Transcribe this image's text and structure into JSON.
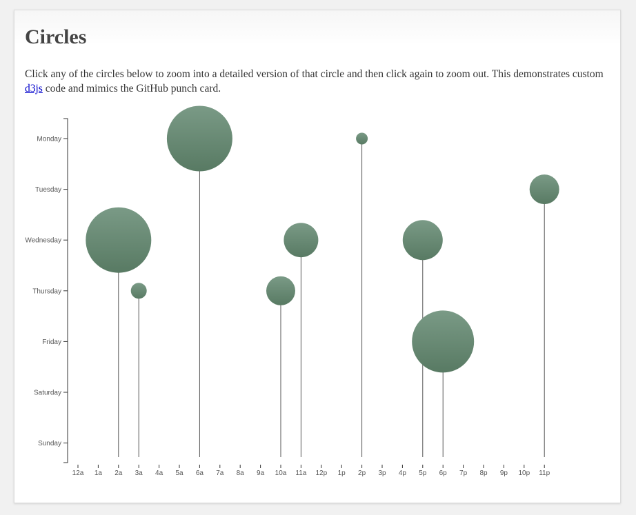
{
  "page": {
    "title": "Circles",
    "description_before": "Click any of the circles below to zoom into a detailed version of that circle and then click again to zoom out. This demonstrates custom ",
    "link_text": "d3js",
    "description_after": " code and mimics the GitHub punch card."
  },
  "colors": {
    "circle_top": "#7a9a86",
    "circle_bottom": "#587a63",
    "stem": "#555555",
    "axis": "#333333"
  },
  "chart_data": {
    "type": "scatter",
    "title": "",
    "xlabel": "",
    "ylabel": "",
    "x_ticks": [
      "12a",
      "1a",
      "2a",
      "3a",
      "4a",
      "5a",
      "6a",
      "7a",
      "8a",
      "9a",
      "10a",
      "11a",
      "12p",
      "1p",
      "2p",
      "3p",
      "4p",
      "5p",
      "6p",
      "7p",
      "8p",
      "9p",
      "10p",
      "11p"
    ],
    "y_ticks": [
      "Monday",
      "Tuesday",
      "Wednesday",
      "Thursday",
      "Friday",
      "Saturday",
      "Sunday"
    ],
    "points": [
      {
        "hour": "2a",
        "day": "Wednesday",
        "size": 95
      },
      {
        "hour": "3a",
        "day": "Thursday",
        "size": 23
      },
      {
        "hour": "6a",
        "day": "Monday",
        "size": 95
      },
      {
        "hour": "10a",
        "day": "Thursday",
        "size": 42
      },
      {
        "hour": "11a",
        "day": "Wednesday",
        "size": 50
      },
      {
        "hour": "2p",
        "day": "Monday",
        "size": 17
      },
      {
        "hour": "5p",
        "day": "Wednesday",
        "size": 58
      },
      {
        "hour": "6p",
        "day": "Friday",
        "size": 90
      },
      {
        "hour": "11p",
        "day": "Tuesday",
        "size": 43
      }
    ]
  }
}
